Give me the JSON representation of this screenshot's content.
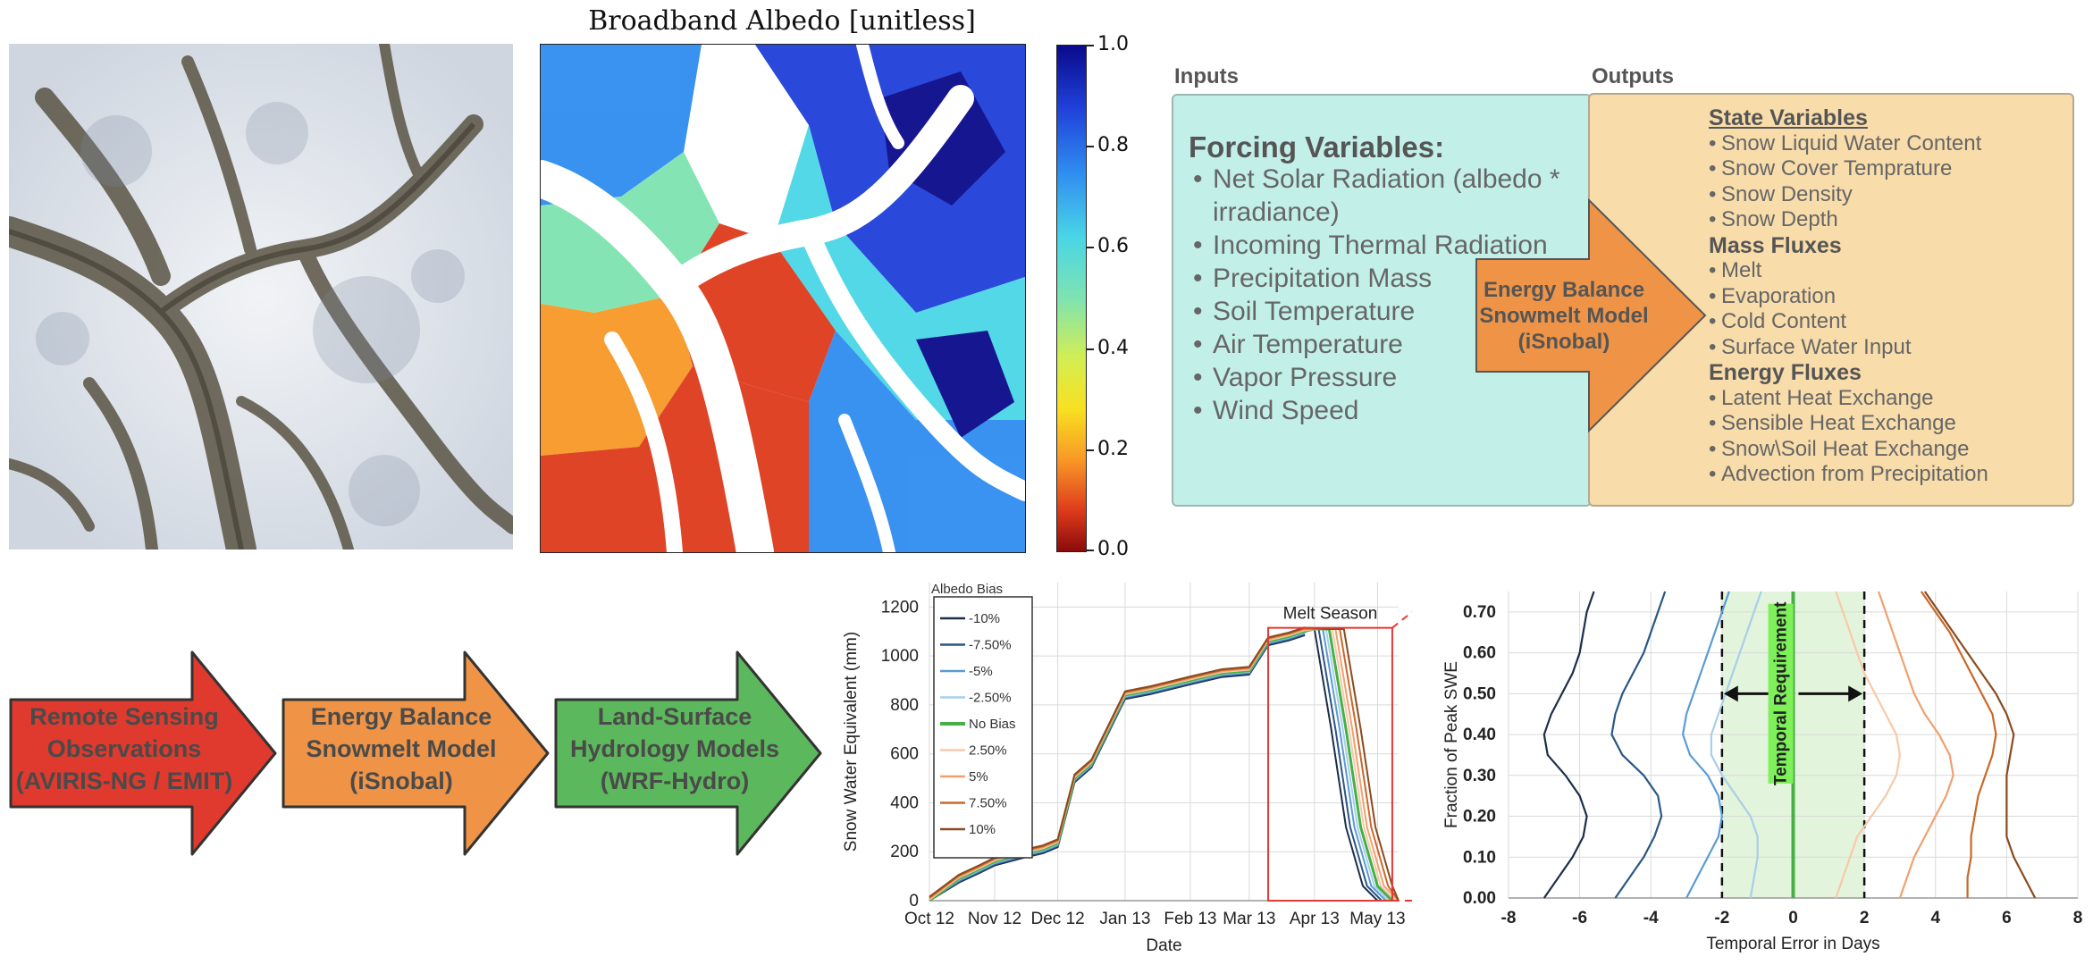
{
  "albedo_panel": {
    "title": "Broadband Albedo [unitless]",
    "colorbar_ticks": [
      "1.0",
      "0.8",
      "0.6",
      "0.4",
      "0.2",
      "0.0"
    ],
    "colorbar_colors": [
      "#0a0a8c",
      "#2f8cf0",
      "#49d6e6",
      "#d4ee52",
      "#f8e020",
      "#de3a1c",
      "#8a0b0b"
    ]
  },
  "model_diagram": {
    "inputs_header": "Inputs",
    "outputs_header": "Outputs",
    "forcing_title": "Forcing Variables:",
    "forcing_items": [
      "Net Solar Radiation (albedo * irradiance)",
      "Incoming Thermal Radiation",
      "Precipitation Mass",
      "Soil Temperature",
      "Air Temperature",
      "Vapor Pressure",
      "Wind Speed"
    ],
    "center_label": [
      "Energy Balance",
      "Snowmelt Model",
      "(iSnobal)"
    ],
    "state_header": "State Variables",
    "state_items": [
      "Snow Liquid Water Content",
      "Snow Cover Temprature",
      "Snow Density",
      "Snow Depth"
    ],
    "mass_header": "Mass Fluxes",
    "mass_items": [
      "Melt",
      "Evaporation",
      "Cold Content",
      "Surface Water Input"
    ],
    "energy_header": "Energy Fluxes",
    "energy_items": [
      "Latent Heat Exchange",
      "Sensible Heat Exchange",
      "Snow\\Soil Heat Exchange",
      "Advection from Precipitation"
    ],
    "colors": {
      "inputs": "#c2f0e9",
      "outputs": "#f8dcaa",
      "arrow": "#ef9447"
    }
  },
  "flow": {
    "arrows": [
      {
        "lines": [
          "Remote Sensing",
          "Observations",
          "(AVIRIS-NG / EMIT)"
        ],
        "color": "#e0392d"
      },
      {
        "lines": [
          "Energy Balance",
          "Snowmelt Model",
          "(iSnobal)"
        ],
        "color": "#ef9447"
      },
      {
        "lines": [
          "Land-Surface",
          "Hydrology Models",
          "(WRF-Hydro)"
        ],
        "color": "#5cb85c"
      }
    ]
  },
  "chart_data": [
    {
      "type": "line",
      "xlabel": "Date",
      "ylabel": "Snow Water Equivalent (mm)",
      "x_ticks": [
        "Oct 12",
        "Nov 12",
        "Dec 12",
        "Jan 13",
        "Feb 13",
        "Mar 13",
        "Apr 13",
        "May 13"
      ],
      "y_ticks": [
        "0",
        "200",
        "400",
        "600",
        "800",
        "1000",
        "1200"
      ],
      "ylim": [
        0,
        1300
      ],
      "legend_title": "Albedo Bias",
      "annotation": "Melt Season",
      "x": [
        "Oct 12",
        "Oct 26",
        "Nov 5",
        "Nov 12",
        "Nov 25",
        "Dec 5",
        "Dec 12",
        "Dec 20",
        "Dec 28",
        "Jan 13",
        "Jan 25",
        "Feb 13",
        "Feb 28",
        "Mar 13",
        "Mar 22",
        "Apr 1",
        "Apr 8",
        "Apr 13",
        "Apr 20",
        "Apr 28",
        "May 5",
        "May 13",
        "May 20"
      ],
      "base": [
        0,
        90,
        130,
        160,
        190,
        210,
        235,
        500,
        560,
        840,
        860,
        900,
        930,
        940,
        1060,
        1080,
        1100,
        1110,
        1110,
        700,
        300,
        60,
        0
      ],
      "series": [
        {
          "name": "-10%",
          "color": "#1c2e4a",
          "shift_days": -7
        },
        {
          "name": "-7.50%",
          "color": "#2a5785",
          "shift_days": -5
        },
        {
          "name": "-5%",
          "color": "#5a9bd4",
          "shift_days": -3
        },
        {
          "name": "-2.50%",
          "color": "#a8cfe8",
          "shift_days": -1.5
        },
        {
          "name": "No Bias",
          "color": "#45b045",
          "shift_days": 0
        },
        {
          "name": "2.50%",
          "color": "#f8c9a8",
          "shift_days": 1.5
        },
        {
          "name": "5%",
          "color": "#f0a070",
          "shift_days": 3
        },
        {
          "name": "7.50%",
          "color": "#c8682a",
          "shift_days": 5
        },
        {
          "name": "10%",
          "color": "#8b4a1e",
          "shift_days": 7
        }
      ]
    },
    {
      "type": "line",
      "xlabel": "Temporal Error in Days",
      "ylabel": "Fraction of Peak SWE",
      "x_ticks": [
        "-8",
        "-6",
        "-4",
        "-2",
        "0",
        "2",
        "4",
        "6",
        "8"
      ],
      "y_ticks": [
        "0.00",
        "0.10",
        "0.20",
        "0.30",
        "0.40",
        "0.50",
        "0.60",
        "0.70"
      ],
      "xlim": [
        -8,
        8
      ],
      "ylim": [
        0,
        0.75
      ],
      "annotation": "Temporal Requirement",
      "requirement_range": [
        -2,
        2
      ],
      "y": [
        0.0,
        0.05,
        0.1,
        0.15,
        0.2,
        0.25,
        0.3,
        0.35,
        0.4,
        0.45,
        0.5,
        0.55,
        0.6,
        0.65,
        0.7,
        0.75
      ],
      "series": [
        {
          "name": "-10%",
          "color": "#1c2e4a",
          "x": [
            -7.0,
            -6.6,
            -6.2,
            -5.9,
            -5.8,
            -6.0,
            -6.4,
            -6.9,
            -7.0,
            -6.8,
            -6.5,
            -6.2,
            -6.0,
            -5.9,
            -5.8,
            -5.6
          ]
        },
        {
          "name": "-7.50%",
          "color": "#2a5785",
          "x": [
            -5.0,
            -4.6,
            -4.2,
            -3.9,
            -3.7,
            -3.8,
            -4.2,
            -4.8,
            -5.1,
            -5.0,
            -4.8,
            -4.5,
            -4.2,
            -4.0,
            -3.8,
            -3.6
          ]
        },
        {
          "name": "-5%",
          "color": "#5a9bd4",
          "x": [
            -3.0,
            -2.7,
            -2.4,
            -2.1,
            -2.0,
            -2.1,
            -2.4,
            -2.9,
            -3.1,
            -3.0,
            -2.8,
            -2.6,
            -2.4,
            -2.2,
            -2.0,
            -1.8
          ]
        },
        {
          "name": "-2.50%",
          "color": "#a8cfe8",
          "x": [
            -1.2,
            -1.1,
            -1.0,
            -1.0,
            -1.2,
            -1.6,
            -2.0,
            -2.3,
            -2.3,
            -2.1,
            -1.9,
            -1.7,
            -1.5,
            -1.3,
            -1.1,
            -0.9
          ]
        },
        {
          "name": "No Bias",
          "color": "#45b045",
          "x": [
            0,
            0,
            0,
            0,
            0,
            0,
            0,
            0,
            0,
            0,
            0,
            0,
            0,
            0,
            0,
            0
          ]
        },
        {
          "name": "2.50%",
          "color": "#f8c9a8",
          "x": [
            1.2,
            1.4,
            1.6,
            1.8,
            2.2,
            2.6,
            2.9,
            3.0,
            2.9,
            2.6,
            2.3,
            2.0,
            1.8,
            1.6,
            1.4,
            1.2
          ]
        },
        {
          "name": "5%",
          "color": "#f0a070",
          "x": [
            3.0,
            3.2,
            3.4,
            3.7,
            4.0,
            4.3,
            4.5,
            4.4,
            4.1,
            3.7,
            3.4,
            3.2,
            3.0,
            2.8,
            2.6,
            2.4
          ]
        },
        {
          "name": "7.50%",
          "color": "#c8682a",
          "x": [
            4.9,
            4.9,
            5.0,
            5.0,
            5.1,
            5.2,
            5.4,
            5.6,
            5.7,
            5.6,
            5.3,
            5.0,
            4.7,
            4.4,
            4.0,
            3.6
          ]
        },
        {
          "name": "10%",
          "color": "#8b4a1e",
          "x": [
            6.8,
            6.5,
            6.2,
            6.0,
            6.0,
            6.0,
            6.0,
            6.1,
            6.2,
            6.0,
            5.7,
            5.3,
            4.9,
            4.5,
            4.1,
            3.7
          ]
        }
      ]
    }
  ]
}
